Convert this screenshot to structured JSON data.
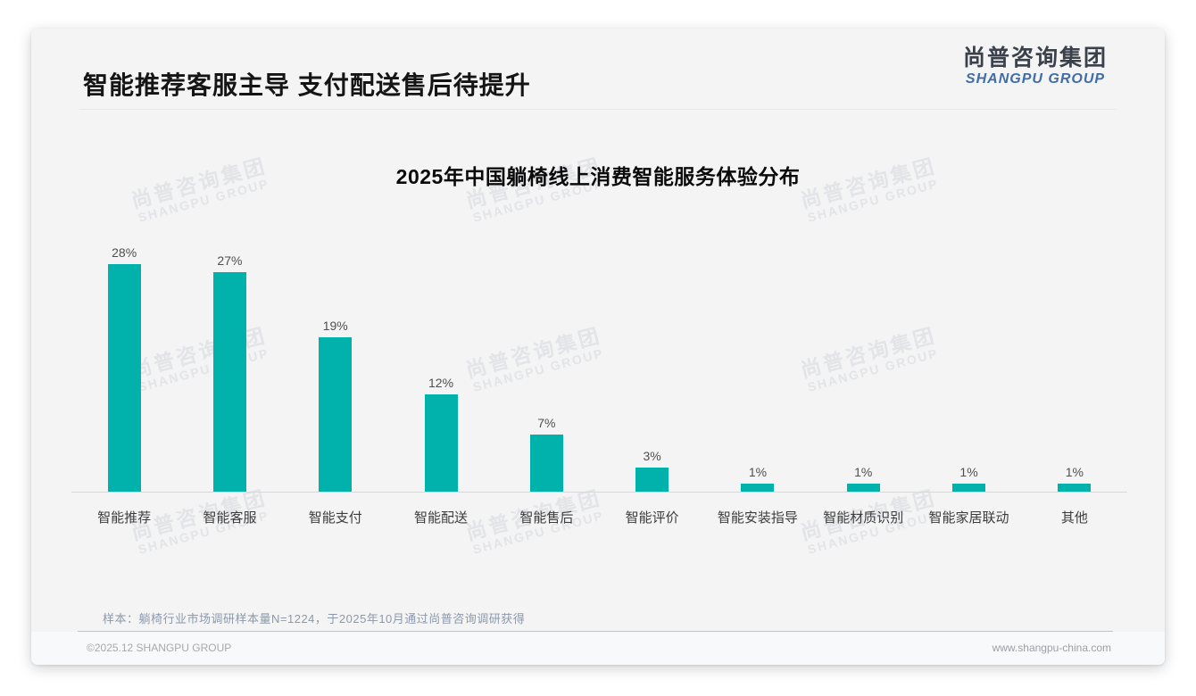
{
  "header": {
    "title": "智能推荐客服主导 支付配送售后待提升",
    "logo_cn": "尚普咨询集团",
    "logo_en": "SHANGPU GROUP"
  },
  "watermark": {
    "line1": "尚普咨询集团",
    "line2": "SHANGPU GROUP"
  },
  "chart_data": {
    "type": "bar",
    "title": "2025年中国躺椅线上消费智能服务体验分布",
    "categories": [
      "智能推荐",
      "智能客服",
      "智能支付",
      "智能配送",
      "智能售后",
      "智能评价",
      "智能安装指导",
      "智能材质识别",
      "智能家居联动",
      "其他"
    ],
    "values": [
      28,
      27,
      19,
      12,
      7,
      3,
      1,
      1,
      1,
      1
    ],
    "unit": "%",
    "xlabel": "",
    "ylabel": "",
    "ylim": [
      0,
      30
    ],
    "grid": false,
    "legend": false,
    "value_labels": true,
    "bar_color": "#00b2ab",
    "axis_line_color": "#d7d8d9"
  },
  "footnote": {
    "text": "样本：躺椅行业市场调研样本量N=1224，于2025年10月通过尚普咨询调研获得"
  },
  "footer": {
    "left": "©2025.12 SHANGPU GROUP",
    "right": "www.shangpu-china.com"
  }
}
